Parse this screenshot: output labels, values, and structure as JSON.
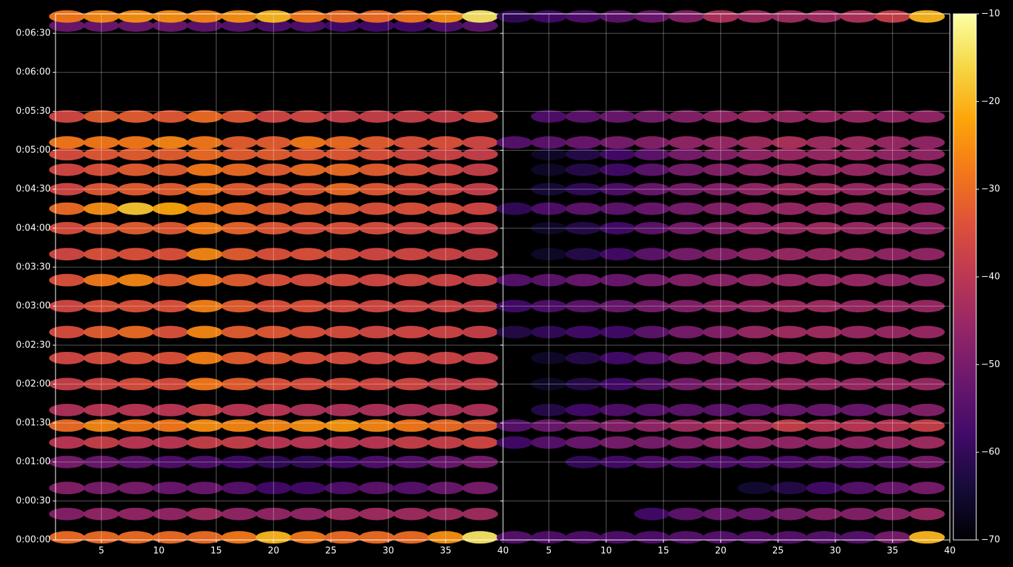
{
  "chart_data": {
    "type": "heatmap",
    "colormap": "inferno",
    "grid": true,
    "ylim": [
      0,
      405
    ],
    "yticks": [
      {
        "value": 0,
        "label": "0:00:00"
      },
      {
        "value": 30,
        "label": "0:00:30"
      },
      {
        "value": 60,
        "label": "0:01:00"
      },
      {
        "value": 90,
        "label": "0:01:30"
      },
      {
        "value": 120,
        "label": "0:02:00"
      },
      {
        "value": 150,
        "label": "0:02:30"
      },
      {
        "value": 180,
        "label": "0:03:00"
      },
      {
        "value": 210,
        "label": "0:03:30"
      },
      {
        "value": 240,
        "label": "0:04:00"
      },
      {
        "value": 270,
        "label": "0:04:30"
      },
      {
        "value": 300,
        "label": "0:05:00"
      },
      {
        "value": 330,
        "label": "0:05:30"
      },
      {
        "value": 360,
        "label": "0:06:00"
      },
      {
        "value": 390,
        "label": "0:06:30"
      }
    ],
    "x": [
      2,
      5,
      8,
      11,
      14,
      17,
      20,
      23,
      26,
      29,
      32,
      35,
      38
    ],
    "y": [
      2,
      20,
      40,
      60,
      75,
      88,
      100,
      120,
      140,
      160,
      180,
      200,
      220,
      240,
      255,
      270,
      285,
      297,
      306,
      326,
      396,
      403
    ],
    "panels": [
      {
        "xlim": [
          1,
          40
        ],
        "xticks": [
          5,
          10,
          15,
          20,
          25,
          30,
          35,
          40
        ],
        "values": [
          [
            -30,
            -30,
            -30,
            -30,
            -30,
            -28,
            -20,
            -28,
            -30,
            -30,
            -30,
            -25,
            -14
          ],
          [
            -48,
            -46,
            -46,
            -46,
            -44,
            -46,
            -46,
            -46,
            -44,
            -44,
            -44,
            -44,
            -44
          ],
          [
            -48,
            -50,
            -50,
            -52,
            -52,
            -55,
            -58,
            -58,
            -56,
            -54,
            -55,
            -52,
            -50
          ],
          [
            -50,
            -52,
            -54,
            -56,
            -56,
            -58,
            -60,
            -60,
            -58,
            -56,
            -55,
            -52,
            -50
          ],
          [
            -40,
            -38,
            -40,
            -40,
            -38,
            -38,
            -40,
            -40,
            -40,
            -40,
            -38,
            -38,
            -36
          ],
          [
            -30,
            -26,
            -28,
            -28,
            -25,
            -26,
            -26,
            -25,
            -24,
            -26,
            -28,
            -30,
            -32
          ],
          [
            -42,
            -40,
            -40,
            -40,
            -38,
            -40,
            -40,
            -42,
            -42,
            -42,
            -42,
            -42,
            -42
          ],
          [
            -38,
            -36,
            -35,
            -35,
            -28,
            -32,
            -34,
            -35,
            -35,
            -36,
            -36,
            -38,
            -38
          ],
          [
            -36,
            -35,
            -34,
            -34,
            -27,
            -32,
            -33,
            -34,
            -35,
            -36,
            -36,
            -37,
            -38
          ],
          [
            -35,
            -32,
            -30,
            -34,
            -26,
            -32,
            -33,
            -34,
            -35,
            -36,
            -36,
            -37,
            -38
          ],
          [
            -36,
            -34,
            -34,
            -34,
            -27,
            -32,
            -34,
            -34,
            -35,
            -36,
            -36,
            -37,
            -38
          ],
          [
            -34,
            -28,
            -26,
            -32,
            -28,
            -32,
            -34,
            -35,
            -35,
            -36,
            -36,
            -37,
            -38
          ],
          [
            -36,
            -34,
            -34,
            -34,
            -26,
            -32,
            -34,
            -34,
            -35,
            -36,
            -36,
            -37,
            -38
          ],
          [
            -35,
            -33,
            -32,
            -33,
            -27,
            -31,
            -33,
            -34,
            -34,
            -35,
            -36,
            -37,
            -38
          ],
          [
            -30,
            -25,
            -18,
            -22,
            -28,
            -30,
            -32,
            -32,
            -32,
            -34,
            -34,
            -35,
            -36
          ],
          [
            -36,
            -33,
            -32,
            -32,
            -28,
            -32,
            -33,
            -33,
            -30,
            -33,
            -35,
            -36,
            -38
          ],
          [
            -36,
            -34,
            -32,
            -32,
            -28,
            -30,
            -32,
            -30,
            -30,
            -32,
            -34,
            -36,
            -38
          ],
          [
            -35,
            -33,
            -32,
            -32,
            -30,
            -32,
            -32,
            -33,
            -33,
            -34,
            -36,
            -37,
            -38
          ],
          [
            -28,
            -28,
            -28,
            -26,
            -28,
            -32,
            -32,
            -28,
            -30,
            -32,
            -34,
            -34,
            -36
          ],
          [
            -36,
            -32,
            -32,
            -33,
            -30,
            -33,
            -36,
            -36,
            -38,
            -38,
            -38,
            -38,
            -36
          ],
          [
            -52,
            -52,
            -52,
            -52,
            -54,
            -55,
            -56,
            -56,
            -58,
            -58,
            -58,
            -56,
            -54
          ],
          [
            -28,
            -26,
            -25,
            -25,
            -26,
            -25,
            -20,
            -28,
            -30,
            -30,
            -28,
            -25,
            -14
          ]
        ]
      },
      {
        "xlim": [
          1,
          40
        ],
        "xticks": [
          5,
          10,
          15,
          20,
          25,
          30,
          35,
          40
        ],
        "values": [
          [
            -55,
            -56,
            -56,
            -56,
            -56,
            -55,
            -55,
            -55,
            -55,
            -55,
            -55,
            -50,
            -20
          ],
          [
            null,
            null,
            null,
            null,
            -58,
            -54,
            -52,
            -52,
            -50,
            -48,
            -48,
            -47,
            -45
          ],
          [
            null,
            null,
            null,
            null,
            null,
            null,
            null,
            -65,
            -62,
            -58,
            -55,
            -52,
            -50
          ],
          [
            null,
            null,
            -60,
            -58,
            -56,
            -56,
            -56,
            -56,
            -56,
            -55,
            -55,
            -54,
            -50
          ],
          [
            -58,
            -55,
            -52,
            -50,
            -50,
            -48,
            -46,
            -46,
            -46,
            -46,
            -46,
            -45,
            -44
          ],
          [
            -55,
            -52,
            -50,
            -48,
            -46,
            -44,
            -42,
            -42,
            -38,
            -40,
            -40,
            -40,
            -38
          ],
          [
            null,
            -62,
            -58,
            -56,
            -55,
            -54,
            -54,
            -54,
            -52,
            -52,
            -52,
            -50,
            -48
          ],
          [
            null,
            -66,
            -62,
            -58,
            -55,
            -50,
            -48,
            -46,
            -45,
            -45,
            -45,
            -45,
            -45
          ],
          [
            null,
            -66,
            -62,
            -58,
            -55,
            -50,
            -48,
            -46,
            -45,
            -44,
            -45,
            -45,
            -45
          ],
          [
            -62,
            -60,
            -58,
            -58,
            -54,
            -50,
            -48,
            -45,
            -44,
            -44,
            -45,
            -45,
            -45
          ],
          [
            -58,
            -56,
            -54,
            -52,
            -50,
            -48,
            -46,
            -45,
            -44,
            -44,
            -45,
            -45,
            -45
          ],
          [
            -55,
            -54,
            -52,
            -52,
            -50,
            -48,
            -47,
            -46,
            -45,
            -45,
            -45,
            -46,
            -46
          ],
          [
            null,
            -66,
            -62,
            -58,
            -54,
            -50,
            -48,
            -46,
            -45,
            -45,
            -45,
            -46,
            -46
          ],
          [
            null,
            -66,
            -62,
            -58,
            -54,
            -50,
            -48,
            -46,
            -45,
            -44,
            -45,
            -45,
            -46
          ],
          [
            -60,
            -56,
            -54,
            -54,
            -52,
            -50,
            -48,
            -46,
            -45,
            -45,
            -45,
            -46,
            -46
          ],
          [
            null,
            -64,
            -60,
            -56,
            -52,
            -50,
            -48,
            -46,
            -44,
            -44,
            -45,
            -45,
            -46
          ],
          [
            null,
            -66,
            -62,
            -58,
            -54,
            -50,
            -48,
            -46,
            -45,
            -45,
            -45,
            -46,
            -46
          ],
          [
            null,
            -66,
            -62,
            -58,
            -54,
            -50,
            -48,
            -46,
            -45,
            -45,
            -45,
            -46,
            -46
          ],
          [
            -55,
            -54,
            -52,
            -50,
            -48,
            -46,
            -45,
            -44,
            -42,
            -44,
            -44,
            -45,
            -46
          ],
          [
            null,
            -56,
            -54,
            -52,
            -50,
            -48,
            -46,
            -45,
            -45,
            -45,
            -45,
            -46,
            -46
          ],
          [
            null,
            null,
            null,
            null,
            null,
            null,
            null,
            null,
            null,
            null,
            null,
            null,
            null
          ],
          [
            -60,
            -58,
            -56,
            -54,
            -52,
            -48,
            -42,
            -44,
            -44,
            -44,
            -42,
            -38,
            -20
          ]
        ]
      }
    ],
    "colorbar": {
      "clim": [
        -70,
        -10
      ],
      "ticks": [
        {
          "value": -10,
          "label": "−10"
        },
        {
          "value": -20,
          "label": "−20"
        },
        {
          "value": -30,
          "label": "−30"
        },
        {
          "value": -40,
          "label": "−40"
        },
        {
          "value": -50,
          "label": "−50"
        },
        {
          "value": -60,
          "label": "−60"
        },
        {
          "value": -70,
          "label": "−70"
        }
      ]
    }
  }
}
